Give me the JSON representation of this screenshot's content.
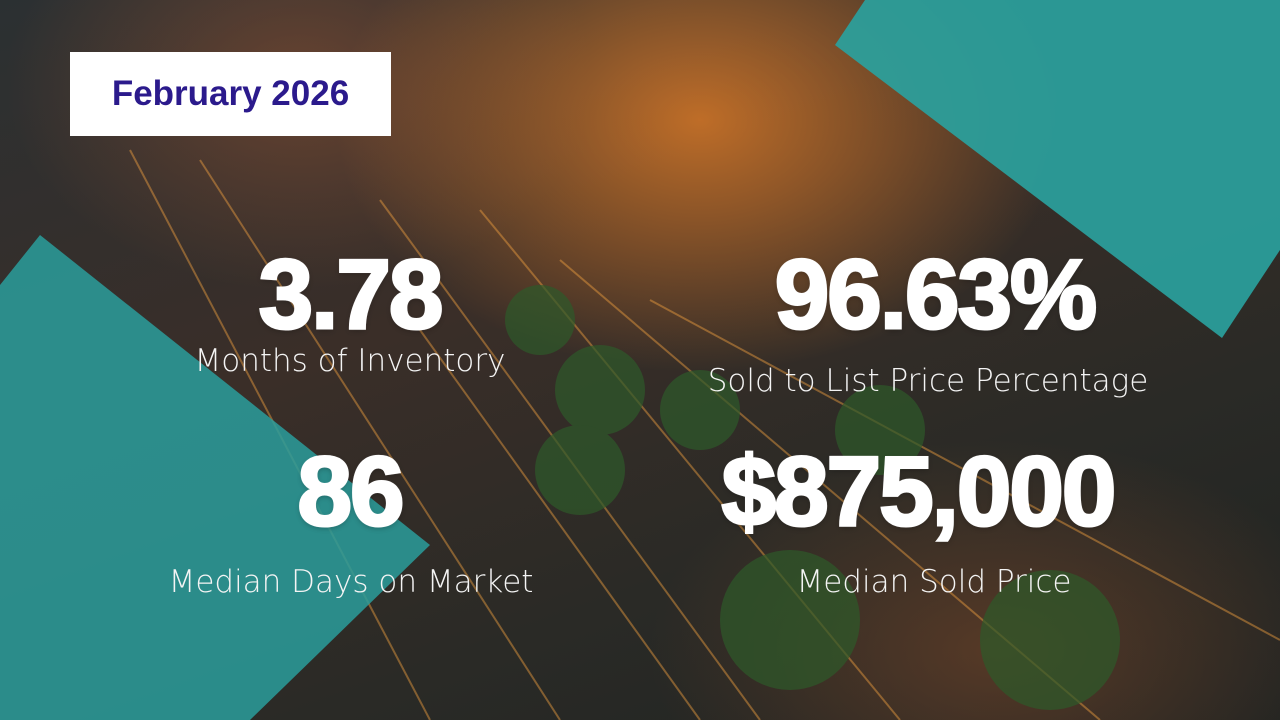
{
  "header": {
    "date": "February 2026"
  },
  "stats": [
    {
      "value": "3.78",
      "label": "Months of Inventory"
    },
    {
      "value": "96.63%",
      "label": "Sold to List Price Percentage"
    },
    {
      "value": "86",
      "label": "Median Days on Market"
    },
    {
      "value": "$875,000",
      "label": "Median Sold Price"
    }
  ]
}
